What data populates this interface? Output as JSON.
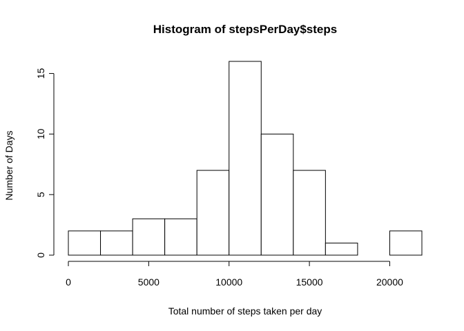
{
  "chart_data": {
    "type": "bar",
    "title": "Histogram of stepsPerDay$steps",
    "xlabel": "Total number of steps taken per day",
    "ylabel": "Number of Days",
    "bin_edges": [
      0,
      2000,
      4000,
      6000,
      8000,
      10000,
      12000,
      14000,
      16000,
      18000,
      20000,
      22000
    ],
    "values": [
      2,
      2,
      3,
      3,
      7,
      16,
      10,
      7,
      1,
      0,
      2
    ],
    "xlim": [
      0,
      22000
    ],
    "ylim": [
      0,
      16
    ],
    "x_ticks": [
      0,
      5000,
      10000,
      15000,
      20000
    ],
    "x_tick_labels": [
      "0",
      "5000",
      "10000",
      "15000",
      "20000"
    ],
    "y_ticks": [
      0,
      5,
      10,
      15
    ],
    "y_tick_labels": [
      "0",
      "5",
      "10",
      "15"
    ],
    "grid": false,
    "legend": "none"
  }
}
